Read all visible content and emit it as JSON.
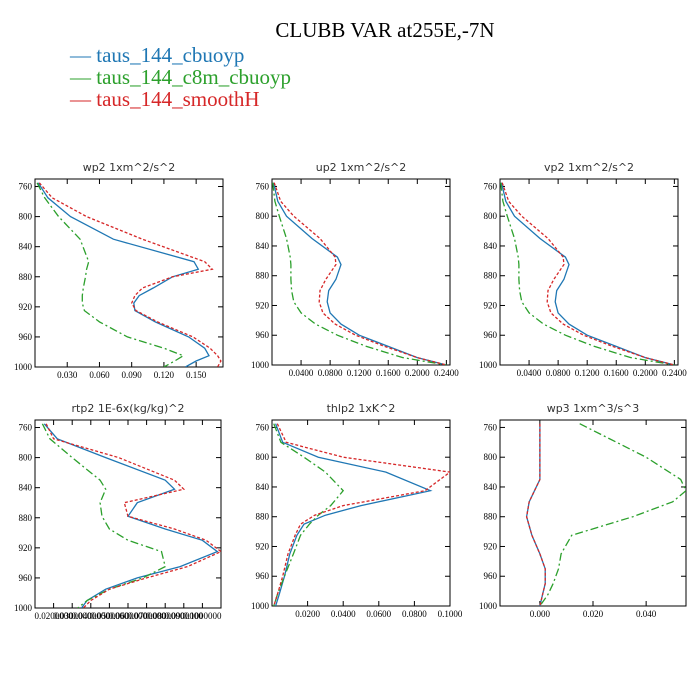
{
  "title": "CLUBB VAR at255E,-7N",
  "legend": [
    {
      "label": "— taus_144_cbuoyp",
      "color": "#1f77b4"
    },
    {
      "label": "— taus_144_c8m_cbuoyp",
      "color": "#2ca02c"
    },
    {
      "label": "— taus_144_smoothH",
      "color": "#d62728"
    }
  ],
  "series_colors": [
    "#1f77b4",
    "#2ca02c",
    "#d62728"
  ],
  "chart_data": [
    {
      "type": "line",
      "title": "wp2  1xm^2/s^2",
      "xlim": [
        0.0,
        0.175
      ],
      "ylim": [
        1000,
        750
      ],
      "xticks": [
        0.03,
        0.06,
        0.09,
        0.12,
        0.15
      ],
      "xticklabels": [
        "0.030",
        "0.060",
        "0.090",
        "0.120",
        "0.150"
      ],
      "yticks": [
        760,
        800,
        840,
        880,
        920,
        960,
        1000
      ],
      "p": [
        755,
        775,
        800,
        830,
        860,
        870,
        880,
        895,
        905,
        915,
        925,
        940,
        960,
        975,
        985,
        992,
        1000
      ],
      "series": [
        {
          "values": [
            0.003,
            0.012,
            0.033,
            0.073,
            0.148,
            0.152,
            0.128,
            0.11,
            0.097,
            0.092,
            0.093,
            0.112,
            0.143,
            0.158,
            0.162,
            0.15,
            0.14
          ]
        },
        {
          "values": [
            0.002,
            0.009,
            0.022,
            0.042,
            0.05,
            0.048,
            0.047,
            0.045,
            0.044,
            0.044,
            0.046,
            0.06,
            0.086,
            0.12,
            0.138,
            0.13,
            0.12
          ]
        },
        {
          "values": [
            0.004,
            0.016,
            0.048,
            0.1,
            0.158,
            0.165,
            0.128,
            0.1,
            0.093,
            0.09,
            0.094,
            0.114,
            0.147,
            0.163,
            0.17,
            0.173,
            0.17
          ]
        }
      ]
    },
    {
      "type": "line",
      "title": "up2  1xm^2/s^2",
      "xlim": [
        0.0,
        0.245
      ],
      "ylim": [
        1000,
        750
      ],
      "xticks": [
        0.04,
        0.08,
        0.12,
        0.16,
        0.2,
        0.24
      ],
      "xticklabels": [
        "0.0400",
        "0.0800",
        "0.1200",
        "0.1600",
        "0.2000",
        "0.2400"
      ],
      "yticks": [
        760,
        800,
        840,
        880,
        920,
        960,
        1000
      ],
      "p": [
        755,
        780,
        800,
        830,
        855,
        865,
        885,
        900,
        915,
        930,
        945,
        960,
        975,
        990,
        1000
      ],
      "series": [
        {
          "values": [
            0.002,
            0.008,
            0.02,
            0.055,
            0.09,
            0.095,
            0.088,
            0.078,
            0.076,
            0.08,
            0.095,
            0.12,
            0.16,
            0.2,
            0.24
          ]
        },
        {
          "values": [
            0.001,
            0.004,
            0.01,
            0.02,
            0.025,
            0.026,
            0.026,
            0.027,
            0.03,
            0.04,
            0.06,
            0.09,
            0.13,
            0.18,
            0.24
          ]
        },
        {
          "values": [
            0.003,
            0.012,
            0.03,
            0.066,
            0.087,
            0.088,
            0.074,
            0.066,
            0.065,
            0.07,
            0.087,
            0.115,
            0.155,
            0.2,
            0.24
          ]
        }
      ]
    },
    {
      "type": "line",
      "title": "vp2  1xm^2/s^2",
      "xlim": [
        0.0,
        0.245
      ],
      "ylim": [
        1000,
        750
      ],
      "xticks": [
        0.04,
        0.08,
        0.12,
        0.16,
        0.2,
        0.24
      ],
      "xticklabels": [
        "0.0400",
        "0.0800",
        "0.1200",
        "0.1600",
        "0.2000",
        "0.2400"
      ],
      "yticks": [
        760,
        800,
        840,
        880,
        920,
        960,
        1000
      ],
      "p": [
        755,
        780,
        800,
        830,
        855,
        865,
        885,
        900,
        915,
        930,
        945,
        960,
        975,
        990,
        1000
      ],
      "series": [
        {
          "values": [
            0.002,
            0.008,
            0.02,
            0.055,
            0.09,
            0.095,
            0.088,
            0.078,
            0.076,
            0.08,
            0.095,
            0.12,
            0.16,
            0.2,
            0.24
          ]
        },
        {
          "values": [
            0.001,
            0.004,
            0.01,
            0.02,
            0.025,
            0.026,
            0.026,
            0.027,
            0.03,
            0.04,
            0.06,
            0.09,
            0.13,
            0.18,
            0.24
          ]
        },
        {
          "values": [
            0.003,
            0.012,
            0.03,
            0.066,
            0.087,
            0.088,
            0.074,
            0.066,
            0.065,
            0.07,
            0.087,
            0.115,
            0.155,
            0.2,
            0.24
          ]
        }
      ]
    },
    {
      "type": "line",
      "title": "rtp2  1E-6x(kg/kg)^2",
      "xlim": [
        0.01,
        0.11
      ],
      "ylim": [
        1000,
        750
      ],
      "xticks": [
        0.02,
        0.03,
        0.04,
        0.05,
        0.06,
        0.07,
        0.08,
        0.09,
        0.1
      ],
      "xticklabels": [
        "0.0200000",
        "0.0300000",
        "0.0400000",
        "0.0500000",
        "0.0600000",
        "0.0700000",
        "0.0800000",
        "0.0900000",
        "0.1000000"
      ],
      "yticks": [
        760,
        800,
        840,
        880,
        920,
        960,
        1000
      ],
      "p": [
        755,
        775,
        800,
        830,
        842,
        860,
        878,
        895,
        910,
        925,
        945,
        960,
        975,
        990,
        1000
      ],
      "series": [
        {
          "values": [
            0.015,
            0.022,
            0.048,
            0.08,
            0.085,
            0.065,
            0.06,
            0.08,
            0.1,
            0.108,
            0.088,
            0.065,
            0.048,
            0.038,
            0.035
          ]
        },
        {
          "values": [
            0.014,
            0.018,
            0.03,
            0.045,
            0.048,
            0.045,
            0.046,
            0.05,
            0.06,
            0.078,
            0.08,
            0.068,
            0.05,
            0.038,
            0.033
          ]
        },
        {
          "values": [
            0.016,
            0.02,
            0.055,
            0.085,
            0.09,
            0.058,
            0.06,
            0.085,
            0.102,
            0.11,
            0.092,
            0.07,
            0.05,
            0.04,
            0.036
          ]
        }
      ]
    },
    {
      "type": "line",
      "title": "thlp2  1xK^2",
      "xlim": [
        0.0,
        0.1
      ],
      "ylim": [
        1000,
        750
      ],
      "xticks": [
        0.02,
        0.04,
        0.06,
        0.08,
        0.1
      ],
      "xticklabels": [
        "0.0200",
        "0.0400",
        "0.0600",
        "0.0800",
        "0.1000"
      ],
      "yticks": [
        760,
        800,
        840,
        880,
        920,
        960,
        1000
      ],
      "p": [
        755,
        780,
        800,
        820,
        845,
        865,
        878,
        890,
        905,
        930,
        960,
        985,
        1000
      ],
      "series": [
        {
          "values": [
            0.002,
            0.006,
            0.026,
            0.064,
            0.089,
            0.05,
            0.03,
            0.018,
            0.014,
            0.01,
            0.007,
            0.004,
            0.002
          ]
        },
        {
          "values": [
            0.001,
            0.005,
            0.018,
            0.03,
            0.04,
            0.033,
            0.026,
            0.021,
            0.016,
            0.012,
            0.007,
            0.003,
            0.001
          ]
        },
        {
          "values": [
            0.003,
            0.008,
            0.04,
            0.1,
            0.086,
            0.04,
            0.024,
            0.016,
            0.013,
            0.009,
            0.006,
            0.003,
            0.001
          ]
        }
      ]
    },
    {
      "type": "line",
      "title": "wp3  1xm^3/s^3",
      "xlim": [
        -0.015,
        0.055
      ],
      "ylim": [
        1000,
        750
      ],
      "xticks": [
        0.0,
        0.02,
        0.04
      ],
      "xticklabels": [
        "0.000",
        "0.020",
        "0.040"
      ],
      "yticks": [
        760,
        800,
        840,
        880,
        920,
        960,
        1000
      ],
      "p": [
        755,
        800,
        830,
        845,
        860,
        880,
        905,
        930,
        950,
        970,
        985,
        1000
      ],
      "series": [
        {
          "values": [
            0.0,
            0.0,
            0.0,
            -0.002,
            -0.004,
            -0.005,
            -0.003,
            0.0,
            0.002,
            0.002,
            0.001,
            0.0
          ]
        },
        {
          "values": [
            0.015,
            0.04,
            0.053,
            0.055,
            0.05,
            0.035,
            0.012,
            0.008,
            0.007,
            0.005,
            0.003,
            0.0
          ]
        },
        {
          "values": [
            0.0,
            0.0,
            0.0,
            -0.002,
            -0.004,
            -0.005,
            -0.003,
            0.0,
            0.002,
            0.002,
            0.001,
            0.0
          ]
        }
      ]
    }
  ]
}
